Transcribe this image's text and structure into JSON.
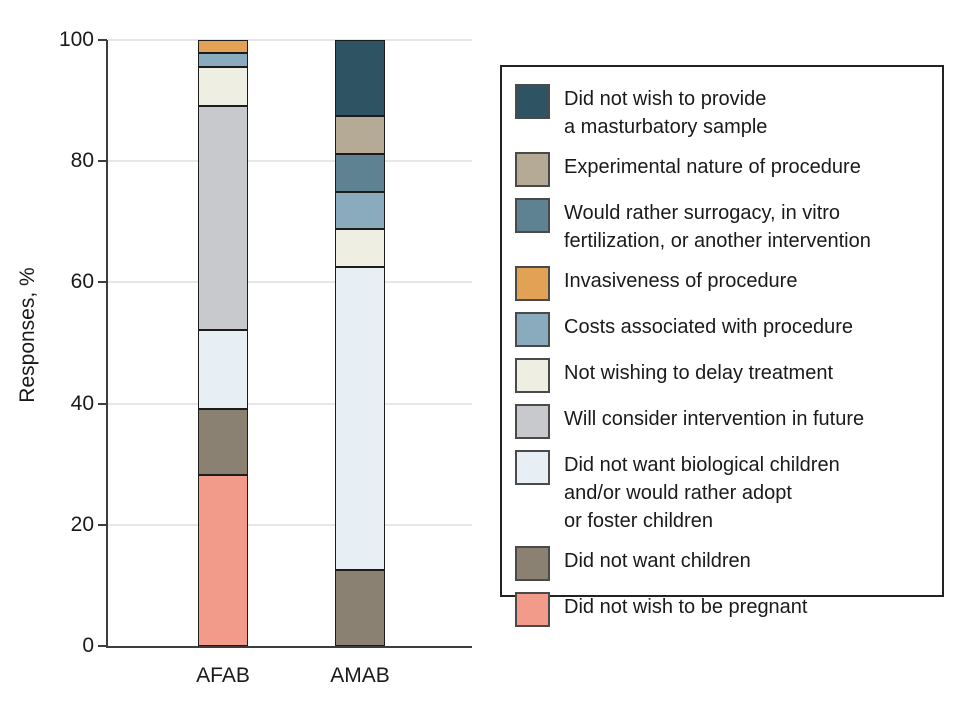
{
  "chart_data": {
    "type": "bar",
    "stacked": true,
    "title": "",
    "xlabel": "",
    "ylabel": "Responses, %",
    "ylim": [
      0,
      100
    ],
    "yticks": [
      0,
      20,
      40,
      60,
      80,
      100
    ],
    "grid": "horizontal",
    "legend_position": "right",
    "categories": [
      "AFAB",
      "AMAB"
    ],
    "series": [
      {
        "key": "no-masturbatory-sample",
        "name": "Did not wish to provide\na masturbatory sample",
        "color": "#2e5363",
        "values": [
          0,
          12.5
        ]
      },
      {
        "key": "experimental-nature",
        "name": "Experimental nature of procedure",
        "color": "#b4aa95",
        "values": [
          0,
          6.25
        ]
      },
      {
        "key": "rather-surrogacy-ivf",
        "name": "Would rather surrogacy, in vitro\nfertilization, or another intervention",
        "color": "#5f8292",
        "values": [
          0,
          6.25
        ]
      },
      {
        "key": "invasiveness",
        "name": "Invasiveness of procedure",
        "color": "#e2a255",
        "values": [
          2.2,
          0
        ]
      },
      {
        "key": "costs",
        "name": "Costs associated with procedure",
        "color": "#8aabbe",
        "values": [
          2.2,
          6.25
        ]
      },
      {
        "key": "not-delay-treatment",
        "name": "Not wishing to delay treatment",
        "color": "#efeee2",
        "values": [
          6.5,
          6.25
        ]
      },
      {
        "key": "consider-future",
        "name": "Will consider intervention in future",
        "color": "#c7c9cc",
        "values": [
          37.0,
          0
        ]
      },
      {
        "key": "no-biological-children",
        "name": "Did not want biological children\nand/or would rather adopt\nor foster children",
        "color": "#e7eff4",
        "values": [
          13.0,
          50.0
        ]
      },
      {
        "key": "no-children",
        "name": "Did not want children",
        "color": "#8a8172",
        "values": [
          10.9,
          12.5
        ]
      },
      {
        "key": "no-pregnancy",
        "name": "Did not wish to be pregnant",
        "color": "#f29b8a",
        "values": [
          28.2,
          0
        ]
      }
    ]
  }
}
